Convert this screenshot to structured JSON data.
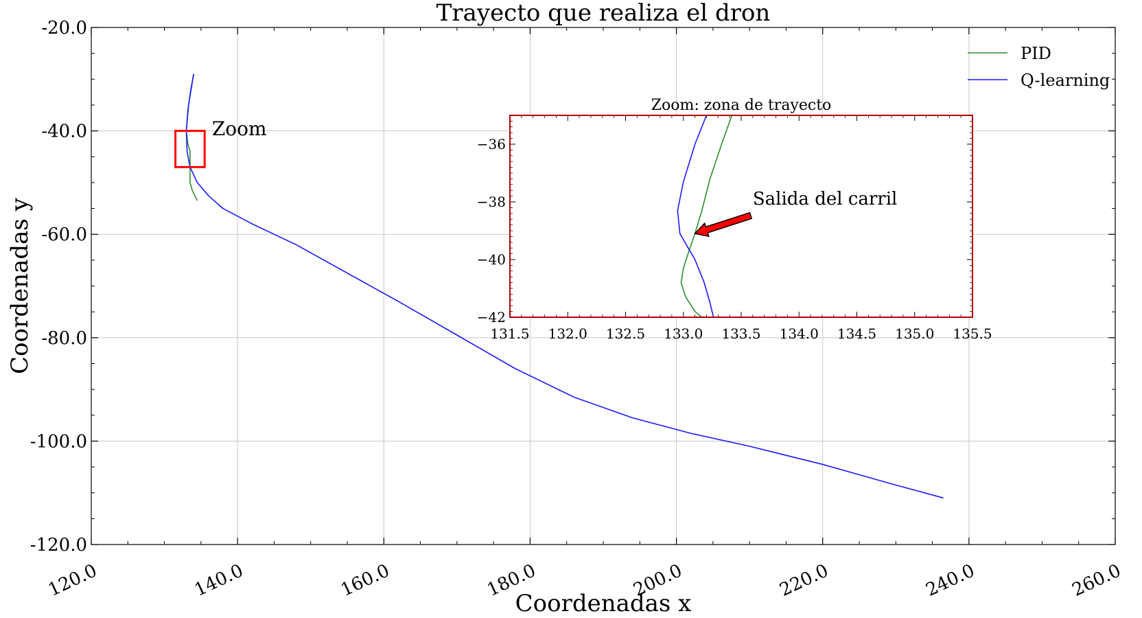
{
  "chart_data": [
    {
      "type": "line",
      "title": "Trayecto que realiza el dron",
      "xlabel": "Coordenadas x",
      "ylabel": "Coordenadas y",
      "xlim": [
        120,
        260
      ],
      "ylim": [
        -120,
        -20
      ],
      "xticks": [
        "120.0",
        "140.0",
        "160.0",
        "180.0",
        "200.0",
        "220.0",
        "240.0",
        "260.0"
      ],
      "yticks": [
        "-20.0",
        "-40.0",
        "-60.0",
        "-80.0",
        "-100.0",
        "-120.0"
      ],
      "xtick_values": [
        120,
        140,
        160,
        180,
        200,
        220,
        240,
        260
      ],
      "ytick_values": [
        -20,
        -40,
        -60,
        -80,
        -100,
        -120
      ],
      "grid": true,
      "legend": "top-right",
      "series": [
        {
          "name": "PID",
          "color": "#2e8b2e",
          "x": [
            134.0,
            133.6,
            133.2,
            133.0,
            133.2,
            133.5,
            133.5,
            133.8,
            134.5
          ],
          "y": [
            -29.0,
            -32.0,
            -36.0,
            -40.0,
            -42.5,
            -44.0,
            -50.0,
            -51.5,
            -53.5
          ]
        },
        {
          "name": "Q-learning",
          "color": "#1a1aff",
          "x": [
            134.0,
            133.3,
            133.0,
            133.1,
            133.5,
            134.5,
            136.0,
            138.0,
            142.0,
            148.0,
            155.0,
            162.0,
            170.0,
            178.0,
            186.0,
            194.0,
            202.0,
            210.0,
            220.0,
            230.0,
            236.5
          ],
          "y": [
            -29.0,
            -35.0,
            -40.0,
            -44.0,
            -47.0,
            -50.0,
            -52.5,
            -55.0,
            -58.0,
            -62.0,
            -67.5,
            -73.0,
            -79.5,
            -86.0,
            -91.5,
            -95.5,
            -98.5,
            -101.0,
            -104.5,
            -108.5,
            -111.0
          ]
        }
      ],
      "annotations": [
        {
          "text": "Zoom",
          "x": 136.5,
          "y": -39.5
        }
      ],
      "zoom_box": {
        "x0": 131.5,
        "x1": 135.5,
        "y0": -47.0,
        "y1": -40.0,
        "color": "#ff0000"
      }
    },
    {
      "type": "line",
      "title": "Zoom: zona de trayecto",
      "xlim": [
        131.5,
        135.5
      ],
      "ylim": [
        -42,
        -35
      ],
      "xticks": [
        "131.5",
        "132.0",
        "132.5",
        "133.0",
        "133.5",
        "134.0",
        "134.5",
        "135.0",
        "135.5"
      ],
      "yticks": [
        "−36",
        "−38",
        "−40",
        "−42"
      ],
      "xtick_values": [
        131.5,
        132.0,
        132.5,
        133.0,
        133.5,
        134.0,
        134.5,
        135.0,
        135.5
      ],
      "ytick_values": [
        -36,
        -38,
        -40,
        -42
      ],
      "border_color": "#b00000",
      "series": [
        {
          "name": "PID",
          "color": "#2e8b2e",
          "x": [
            133.42,
            133.33,
            133.23,
            133.16,
            133.1,
            133.04,
            133.0,
            132.98,
            133.02,
            133.1,
            133.16
          ],
          "y": [
            -35.0,
            -36.0,
            -37.2,
            -38.3,
            -39.1,
            -39.8,
            -40.3,
            -40.8,
            -41.3,
            -41.8,
            -42.0
          ]
        },
        {
          "name": "Q-learning",
          "color": "#1a1aff",
          "x": [
            133.2,
            133.1,
            133.0,
            132.95,
            132.97,
            133.1,
            133.18,
            133.23,
            133.26
          ],
          "y": [
            -35.0,
            -36.0,
            -37.3,
            -38.3,
            -39.1,
            -40.0,
            -40.8,
            -41.5,
            -42.0
          ]
        }
      ],
      "annotations": [
        {
          "text": "Salida del carril",
          "x": 133.6,
          "y": -38.0,
          "arrow_to": {
            "x": 133.1,
            "y": -39.1
          },
          "arrow_color": "#ff0000"
        }
      ]
    }
  ],
  "legend_items": [
    {
      "label": "PID",
      "color": "#2e8b2e"
    },
    {
      "label": "Q-learning",
      "color": "#1a1aff"
    }
  ]
}
